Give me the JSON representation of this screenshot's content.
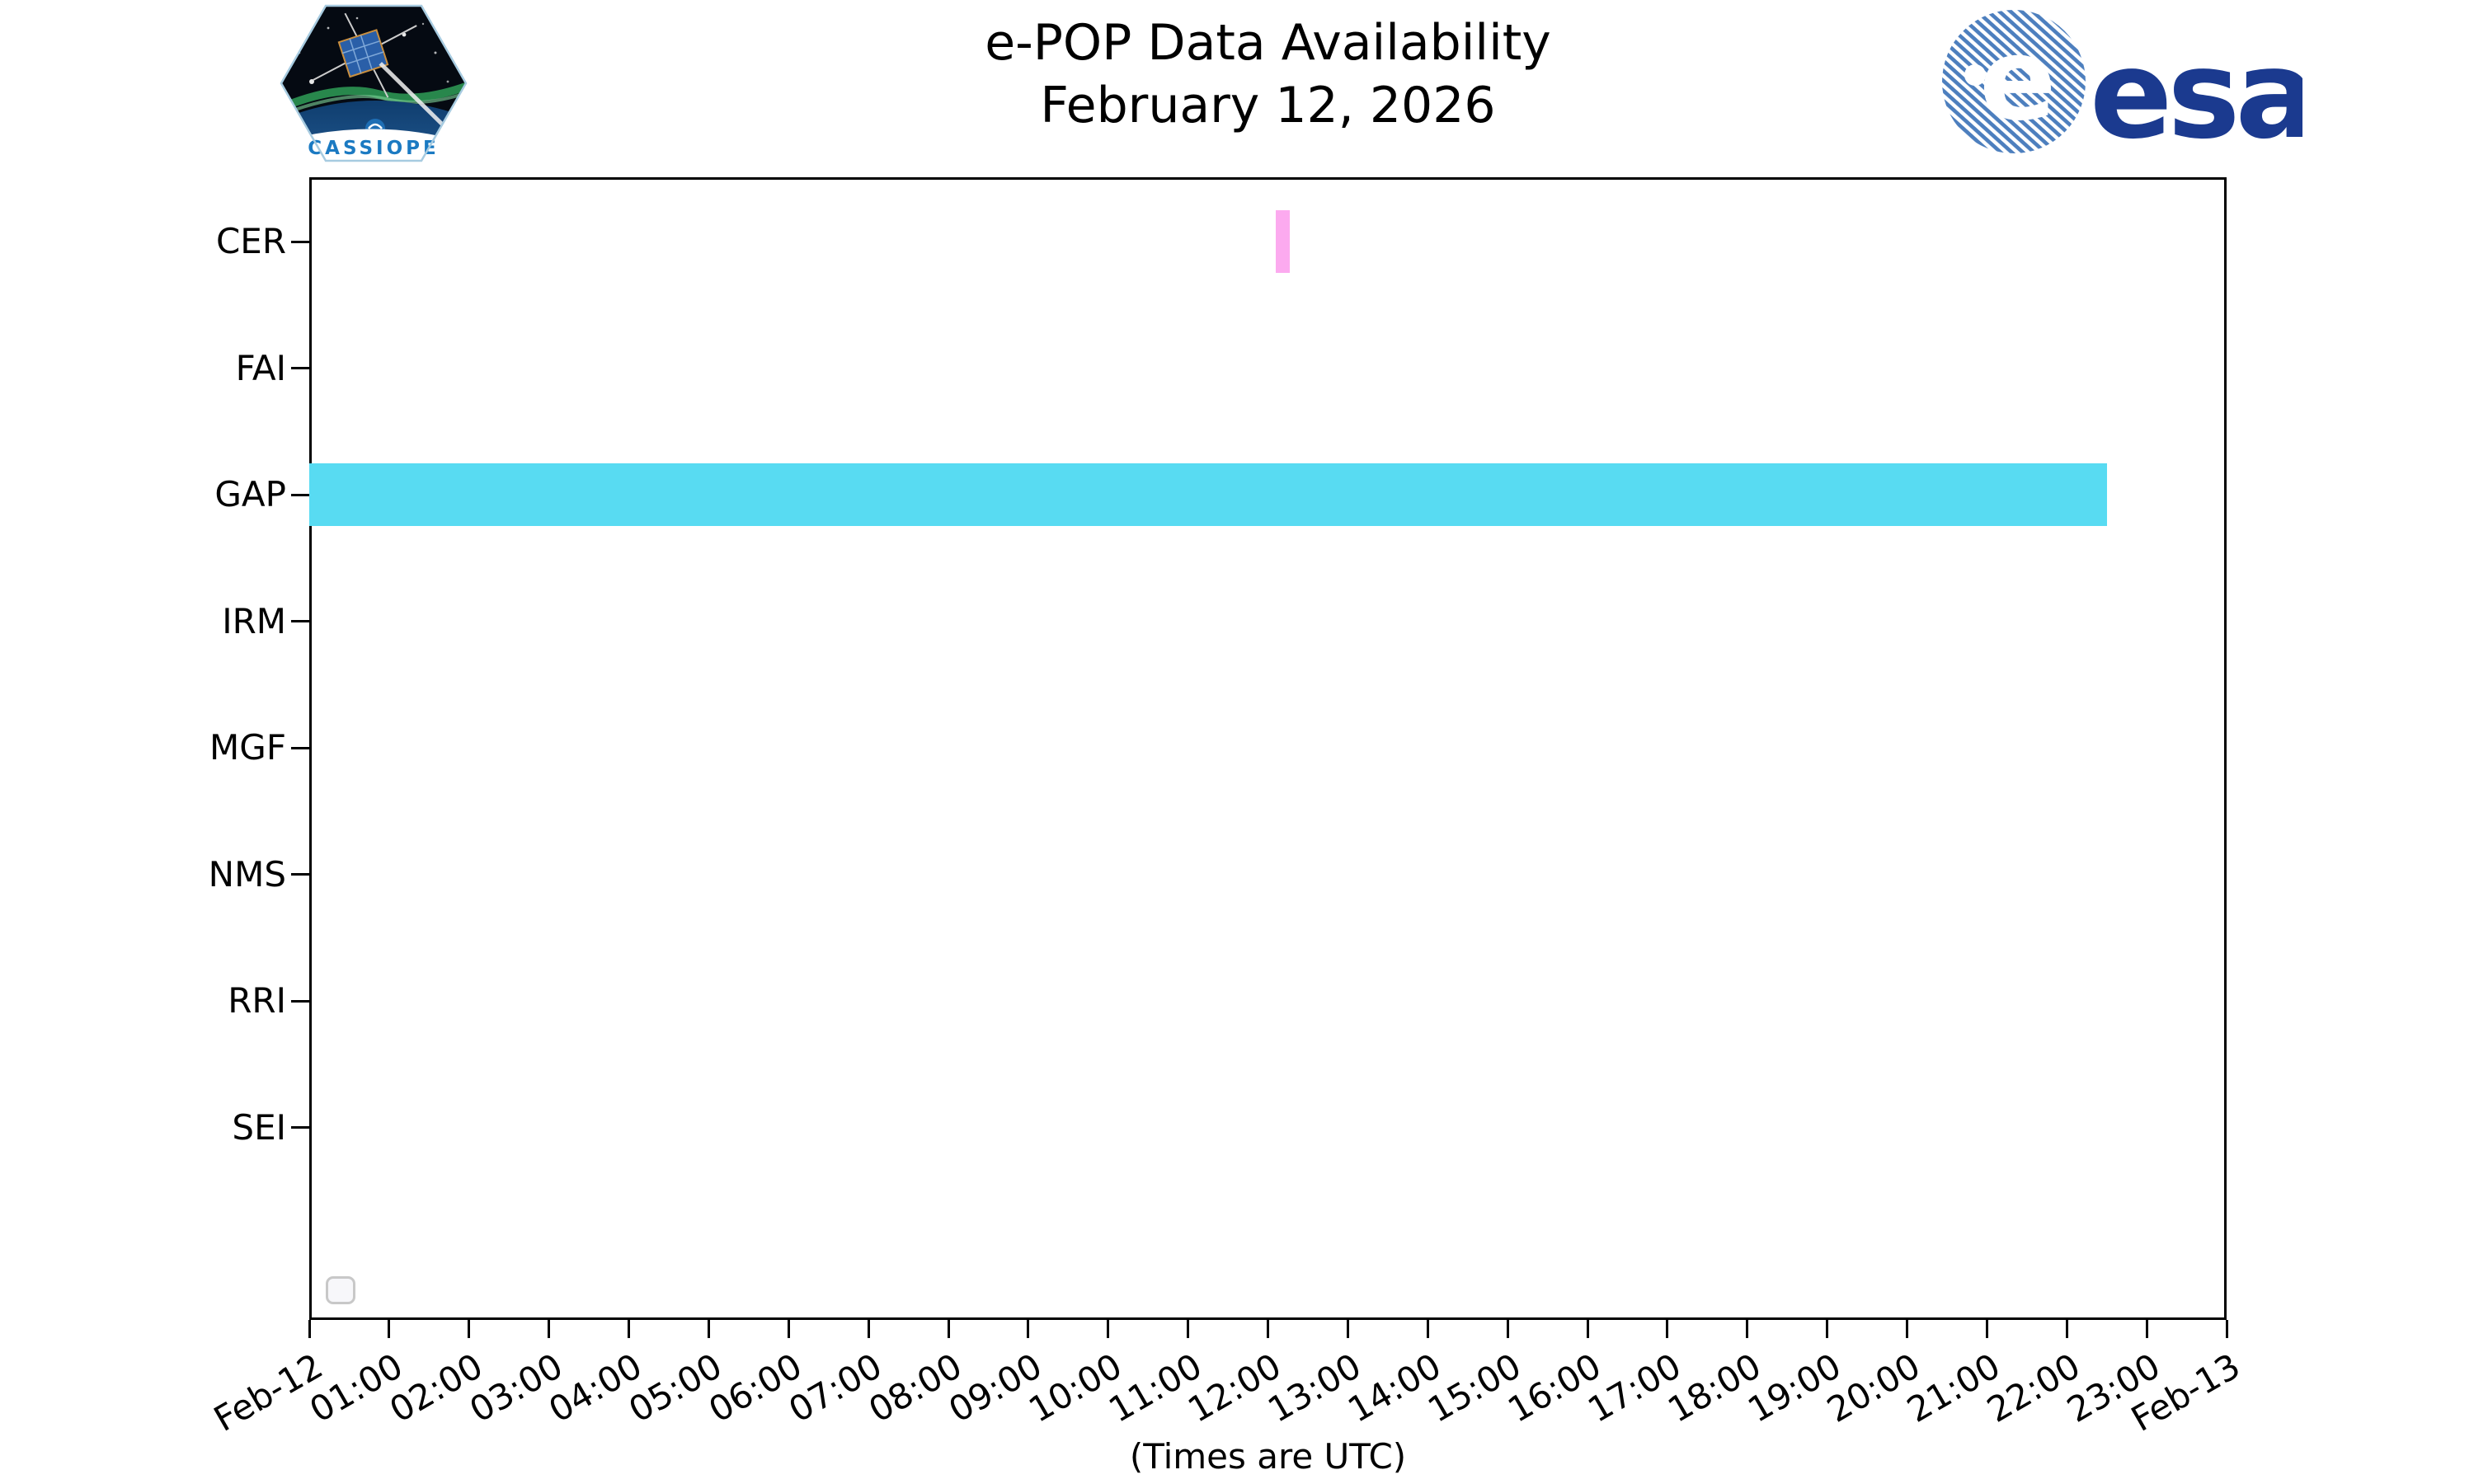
{
  "header": {
    "title_line1": "e-POP Data Availability",
    "title_line2": "February 12, 2026",
    "cassiope_badge_label": "CASSIOPE",
    "esa_wordmark": "esa"
  },
  "chart_data": {
    "type": "bar",
    "subtype": "timeline-availability",
    "title": "e-POP Data Availability",
    "subtitle": "February 12, 2026",
    "y_categories": [
      "CER",
      "FAI",
      "GAP",
      "IRM",
      "MGF",
      "NMS",
      "RRI",
      "SEI"
    ],
    "x_axis": {
      "label": "(Times are UTC)",
      "start": "Feb-12 00:00",
      "end": "Feb-13 00:00",
      "tick_interval_hours": 1,
      "tick_labels": [
        "Feb-12",
        "01:00",
        "02:00",
        "03:00",
        "04:00",
        "05:00",
        "06:00",
        "07:00",
        "08:00",
        "09:00",
        "10:00",
        "11:00",
        "12:00",
        "13:00",
        "14:00",
        "15:00",
        "16:00",
        "17:00",
        "18:00",
        "19:00",
        "20:00",
        "21:00",
        "22:00",
        "23:00",
        "Feb-13"
      ]
    },
    "bars": [
      {
        "instrument": "CER",
        "start": "12:06",
        "end": "12:16",
        "start_hour": 12.1,
        "end_hour": 12.27,
        "color": "#FCAAEF"
      },
      {
        "instrument": "GAP",
        "start": "00:00",
        "end": "22:30",
        "start_hour": 0.0,
        "end_hour": 22.5,
        "color": "#58DBF2"
      }
    ],
    "legend": {
      "present": true,
      "entries": []
    },
    "grid": false,
    "axis_color": "#000000"
  },
  "colors": {
    "cer_bar": "#FCAAEF",
    "gap_bar": "#58DBF2",
    "axis": "#000000",
    "esa_text_blue": "#1B3A8F",
    "esa_globe_blue": "#4D7FBE",
    "cassiope_text_blue": "#1B7AC2"
  }
}
